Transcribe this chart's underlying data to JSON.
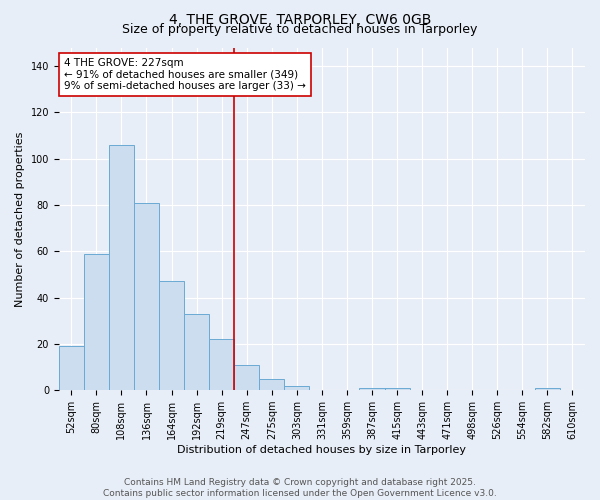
{
  "title": "4, THE GROVE, TARPORLEY, CW6 0GB",
  "subtitle": "Size of property relative to detached houses in Tarporley",
  "xlabel": "Distribution of detached houses by size in Tarporley",
  "ylabel": "Number of detached properties",
  "bin_labels": [
    "52sqm",
    "80sqm",
    "108sqm",
    "136sqm",
    "164sqm",
    "192sqm",
    "219sqm",
    "247sqm",
    "275sqm",
    "303sqm",
    "331sqm",
    "359sqm",
    "387sqm",
    "415sqm",
    "443sqm",
    "471sqm",
    "498sqm",
    "526sqm",
    "554sqm",
    "582sqm",
    "610sqm"
  ],
  "bar_heights": [
    19,
    59,
    106,
    81,
    47,
    33,
    22,
    11,
    5,
    2,
    0,
    0,
    1,
    1,
    0,
    0,
    0,
    0,
    0,
    1,
    0
  ],
  "bar_color": "#ccddf0",
  "bar_edge_color": "#6aaad4",
  "vline_x_idx": 6,
  "vline_color": "#cc0000",
  "annotation_line1": "4 THE GROVE: 227sqm",
  "annotation_line2": "← 91% of detached houses are smaller (349)",
  "annotation_line3": "9% of semi-detached houses are larger (33) →",
  "annotation_box_color": "#ffffff",
  "annotation_box_edge": "#cc0000",
  "ylim": [
    0,
    148
  ],
  "yticks": [
    0,
    20,
    40,
    60,
    80,
    100,
    120,
    140
  ],
  "footer_text": "Contains HM Land Registry data © Crown copyright and database right 2025.\nContains public sector information licensed under the Open Government Licence v3.0.",
  "bg_color": "#e8eef7",
  "plot_bg_color": "#e8eef7",
  "grid_color": "#ffffff",
  "title_fontsize": 10,
  "subtitle_fontsize": 9,
  "axis_label_fontsize": 8,
  "tick_fontsize": 7,
  "annotation_fontsize": 7.5,
  "footer_fontsize": 6.5
}
